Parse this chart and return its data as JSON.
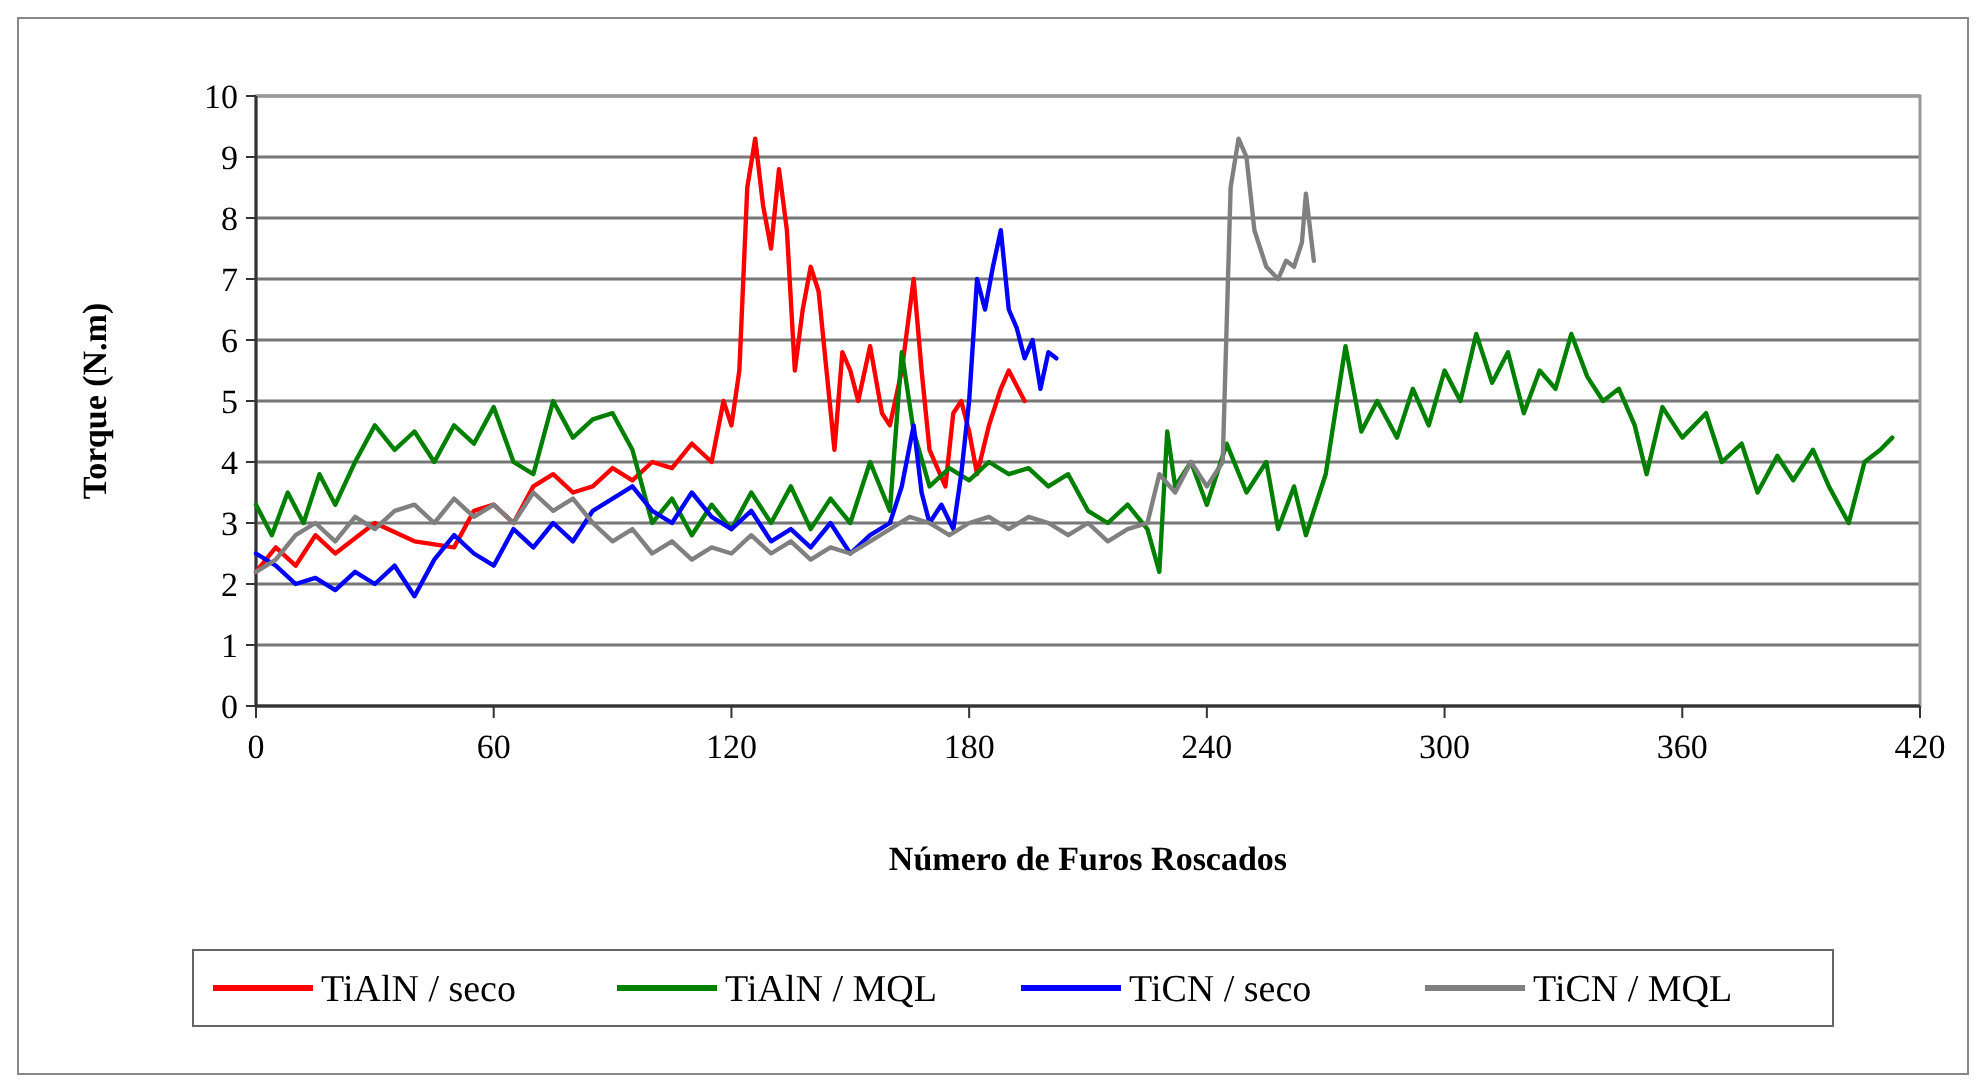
{
  "chart_data": {
    "type": "line",
    "xlabel": "Número de Furos Roscados",
    "ylabel": "Torque (N.m)",
    "xlim": [
      0,
      420
    ],
    "xticks": [
      0,
      60,
      120,
      180,
      240,
      300,
      360,
      420
    ],
    "ylim": [
      0,
      10
    ],
    "yticks": [
      0,
      1,
      2,
      3,
      4,
      5,
      6,
      7,
      8,
      9,
      10
    ],
    "grid": "y",
    "legend": "bottom",
    "marker": "none",
    "line_style": "solid",
    "series": [
      {
        "name": "TiAlN / seco",
        "color": "#ff0000",
        "x": [
          0,
          5,
          10,
          15,
          20,
          30,
          40,
          50,
          55,
          60,
          65,
          70,
          75,
          80,
          85,
          90,
          95,
          100,
          105,
          110,
          115,
          118,
          120,
          122,
          124,
          126,
          128,
          130,
          132,
          134,
          136,
          138,
          140,
          142,
          144,
          146,
          148,
          150,
          152,
          155,
          158,
          160,
          163,
          166,
          168,
          170,
          172,
          174,
          176,
          178,
          180,
          182,
          185,
          188,
          190,
          194
        ],
        "values": [
          2.2,
          2.6,
          2.3,
          2.8,
          2.5,
          3.0,
          2.7,
          2.6,
          3.2,
          3.3,
          3.0,
          3.6,
          3.8,
          3.5,
          3.6,
          3.9,
          3.7,
          4.0,
          3.9,
          4.3,
          4.0,
          5.0,
          4.6,
          5.5,
          8.5,
          9.3,
          8.2,
          7.5,
          8.8,
          7.8,
          5.5,
          6.5,
          7.2,
          6.8,
          5.5,
          4.2,
          5.8,
          5.5,
          5.0,
          5.9,
          4.8,
          4.6,
          5.5,
          7.0,
          5.5,
          4.2,
          3.9,
          3.6,
          4.8,
          5.0,
          4.5,
          3.8,
          4.6,
          5.2,
          5.5,
          5.0
        ]
      },
      {
        "name": "TiAlN / MQL",
        "color": "#008000",
        "x": [
          0,
          4,
          8,
          12,
          16,
          20,
          25,
          30,
          35,
          40,
          45,
          50,
          55,
          60,
          65,
          70,
          75,
          80,
          85,
          90,
          95,
          100,
          105,
          110,
          115,
          120,
          125,
          130,
          135,
          140,
          145,
          150,
          155,
          160,
          163,
          166,
          170,
          175,
          180,
          185,
          190,
          195,
          200,
          205,
          210,
          215,
          220,
          225,
          228,
          230,
          232,
          236,
          240,
          245,
          250,
          255,
          258,
          262,
          265,
          270,
          275,
          279,
          283,
          288,
          292,
          296,
          300,
          304,
          308,
          312,
          316,
          320,
          324,
          328,
          332,
          336,
          340,
          344,
          348,
          351,
          355,
          360,
          366,
          370,
          375,
          379,
          384,
          388,
          393,
          397,
          402,
          406,
          410,
          413
        ],
        "values": [
          3.3,
          2.8,
          3.5,
          3.0,
          3.8,
          3.3,
          4.0,
          4.6,
          4.2,
          4.5,
          4.0,
          4.6,
          4.3,
          4.9,
          4.0,
          3.8,
          5.0,
          4.4,
          4.7,
          4.8,
          4.2,
          3.0,
          3.4,
          2.8,
          3.3,
          2.9,
          3.5,
          3.0,
          3.6,
          2.9,
          3.4,
          3.0,
          4.0,
          3.2,
          5.8,
          4.5,
          3.6,
          3.9,
          3.7,
          4.0,
          3.8,
          3.9,
          3.6,
          3.8,
          3.2,
          3.0,
          3.3,
          2.9,
          2.2,
          4.5,
          3.6,
          4.0,
          3.3,
          4.3,
          3.5,
          4.0,
          2.9,
          3.6,
          2.8,
          3.8,
          5.9,
          4.5,
          5.0,
          4.4,
          5.2,
          4.6,
          5.5,
          5.0,
          6.1,
          5.3,
          5.8,
          4.8,
          5.5,
          5.2,
          6.1,
          5.4,
          5.0,
          5.2,
          4.6,
          3.8,
          4.9,
          4.4,
          4.8,
          4.0,
          4.3,
          3.5,
          4.1,
          3.7,
          4.2,
          3.6,
          3.0,
          4.0,
          4.2,
          4.4
        ]
      },
      {
        "name": "TiCN / seco",
        "color": "#0000ff",
        "x": [
          0,
          5,
          10,
          15,
          20,
          25,
          30,
          35,
          40,
          45,
          50,
          55,
          60,
          65,
          70,
          75,
          80,
          85,
          90,
          95,
          100,
          105,
          110,
          115,
          120,
          125,
          130,
          135,
          140,
          145,
          150,
          155,
          160,
          163,
          166,
          168,
          170,
          173,
          176,
          178,
          180,
          182,
          184,
          186,
          188,
          190,
          192,
          194,
          196,
          198,
          200,
          202
        ],
        "values": [
          2.5,
          2.3,
          2.0,
          2.1,
          1.9,
          2.2,
          2.0,
          2.3,
          1.8,
          2.4,
          2.8,
          2.5,
          2.3,
          2.9,
          2.6,
          3.0,
          2.7,
          3.2,
          3.4,
          3.6,
          3.2,
          3.0,
          3.5,
          3.1,
          2.9,
          3.2,
          2.7,
          2.9,
          2.6,
          3.0,
          2.5,
          2.8,
          3.0,
          3.6,
          4.6,
          3.5,
          3.0,
          3.3,
          2.9,
          3.8,
          5.0,
          7.0,
          6.5,
          7.2,
          7.8,
          6.5,
          6.2,
          5.7,
          6.0,
          5.2,
          5.8,
          5.7
        ]
      },
      {
        "name": "TiCN / MQL",
        "color": "#808080",
        "x": [
          0,
          5,
          10,
          15,
          20,
          25,
          30,
          35,
          40,
          45,
          50,
          55,
          60,
          65,
          70,
          75,
          80,
          85,
          90,
          95,
          100,
          105,
          110,
          115,
          120,
          125,
          130,
          135,
          140,
          145,
          150,
          155,
          160,
          165,
          170,
          175,
          180,
          185,
          190,
          195,
          200,
          205,
          210,
          215,
          220,
          225,
          228,
          232,
          236,
          240,
          244,
          246,
          248,
          250,
          252,
          255,
          258,
          260,
          262,
          264,
          265,
          267
        ],
        "values": [
          2.2,
          2.4,
          2.8,
          3.0,
          2.7,
          3.1,
          2.9,
          3.2,
          3.3,
          3.0,
          3.4,
          3.1,
          3.3,
          3.0,
          3.5,
          3.2,
          3.4,
          3.0,
          2.7,
          2.9,
          2.5,
          2.7,
          2.4,
          2.6,
          2.5,
          2.8,
          2.5,
          2.7,
          2.4,
          2.6,
          2.5,
          2.7,
          2.9,
          3.1,
          3.0,
          2.8,
          3.0,
          3.1,
          2.9,
          3.1,
          3.0,
          2.8,
          3.0,
          2.7,
          2.9,
          3.0,
          3.8,
          3.5,
          4.0,
          3.6,
          4.0,
          8.5,
          9.3,
          9.0,
          7.8,
          7.2,
          7.0,
          7.3,
          7.2,
          7.6,
          8.4,
          7.3
        ]
      }
    ]
  }
}
